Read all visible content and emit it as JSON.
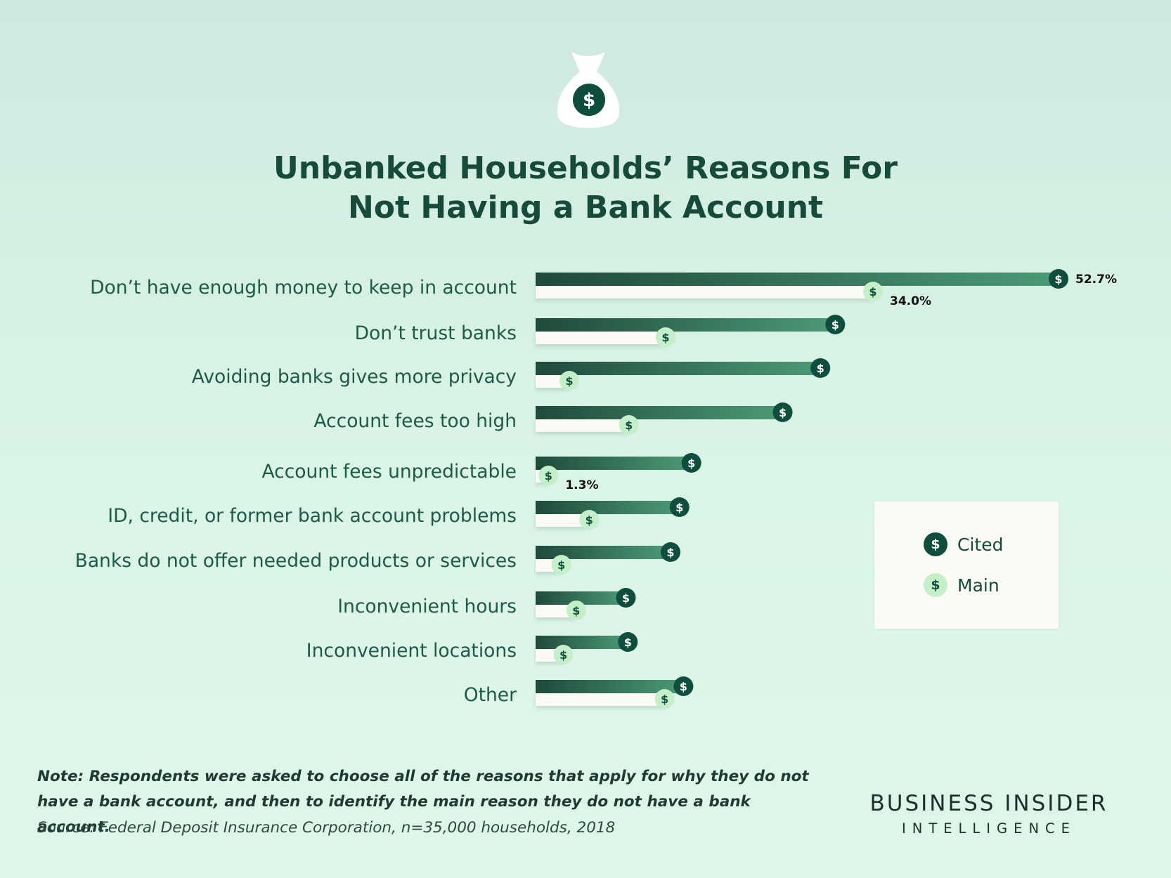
{
  "header": {
    "icon": "money-bag-icon",
    "title_line1": "Unbanked Households’ Reasons For",
    "title_line2": "Not Having a Bank Account"
  },
  "chart_data": {
    "type": "bar",
    "orientation": "horizontal",
    "title": "Unbanked Households’ Reasons For Not Having a Bank Account",
    "categories": [
      "Don’t have enough money to keep in account",
      "Don’t trust banks",
      "Avoiding banks gives more privacy",
      "Account fees too high",
      "Account fees unpredictable",
      "ID, credit, or former bank account problems",
      "Banks do not offer needed products or services",
      "Inconvenient hours",
      "Inconvenient locations",
      "Other"
    ],
    "series": [
      {
        "name": "Cited",
        "values": [
          52.7,
          30.2,
          28.7,
          24.9,
          15.7,
          14.5,
          13.6,
          9.1,
          9.3,
          14.9
        ]
      },
      {
        "name": "Main",
        "values": [
          34.0,
          13.1,
          3.4,
          9.4,
          1.3,
          5.4,
          2.6,
          4.1,
          2.8,
          13.0
        ]
      }
    ],
    "data_labels": [
      {
        "category_index": 0,
        "series": "Cited",
        "text": "52.7%"
      },
      {
        "category_index": 0,
        "series": "Main",
        "text": "34.0%"
      },
      {
        "category_index": 4,
        "series": "Main",
        "text": "1.3%"
      }
    ],
    "xlim": [
      0,
      52.7
    ],
    "grid": false,
    "legend_position": "right",
    "colors": {
      "cited": "#0f4d3c",
      "cited_bar_start": "#1f4a3c",
      "cited_bar_end": "#4c9a76",
      "main": "#c5efc9",
      "main_bar": "#fbfaf4",
      "coin_text_main": "#13503f"
    },
    "coin_glyph": "$"
  },
  "legend": {
    "items": [
      {
        "label": "Cited",
        "icon": "dollar-coin-icon",
        "color": "#0f4d3c",
        "glyph": "$"
      },
      {
        "label": "Main",
        "icon": "dollar-coin-icon",
        "color": "#c5efc9",
        "glyph": "$"
      }
    ]
  },
  "footer": {
    "note": "Note: Respondents were asked to choose all of the reasons that apply for why they do not have a bank account, and then to identify the main reason they do not have a bank account.",
    "source": "Source: Federal Deposit Insurance Corporation, n=35,000 households, 2018",
    "brand_name": "BUSINESS INSIDER",
    "brand_sub": "INTELLIGENCE"
  }
}
